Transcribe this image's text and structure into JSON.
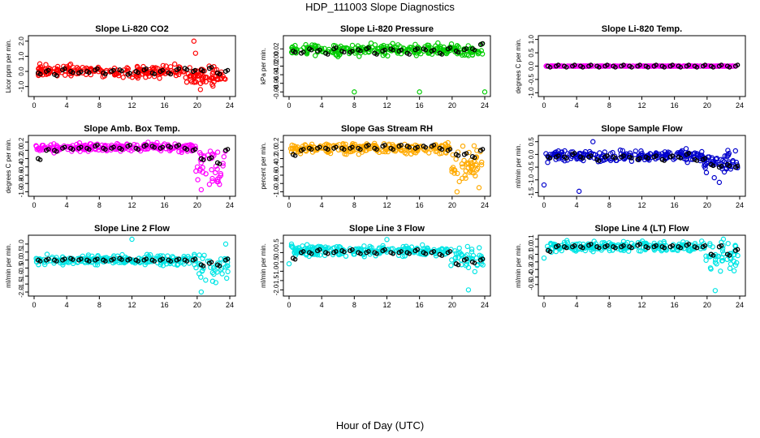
{
  "title": "HDP_111003  Slope Diagnostics",
  "x_axis_title": "Hour of Day (UTC)",
  "chart_data": [
    {
      "type": "scatter",
      "title": "Slope Li-820 CO2",
      "ylabel": "Licor ppm per min.",
      "xlim": [
        0,
        24
      ],
      "xticks": [
        0,
        4,
        8,
        12,
        16,
        20,
        24
      ],
      "ylim": [
        -1.5,
        2.2
      ],
      "yticks": [
        -1,
        0,
        1,
        2
      ],
      "ytick_labels": [
        "-1.0",
        "0.0",
        "1.0",
        "2.0"
      ],
      "color": "#ff0000",
      "series": [
        {
          "name": "means",
          "color": "#000000",
          "x": [
            0.5,
            1.5,
            2.5,
            3.5,
            4.5,
            5.5,
            6.5,
            7.5,
            8.5,
            9.5,
            10.5,
            11.5,
            12.5,
            13.5,
            14.5,
            15.5,
            16.5,
            17.5,
            18.5,
            19.5,
            20.5,
            21.5,
            22.5,
            23.5
          ],
          "y": [
            -0.1,
            0.0,
            -0.2,
            0.1,
            0.0,
            -0.1,
            0.0,
            0.1,
            -0.1,
            0.0,
            0.1,
            -0.2,
            0.0,
            0.1,
            -0.1,
            0.0,
            -0.1,
            0.1,
            0.2,
            0.0,
            0.1,
            0.2,
            -0.1,
            0.0
          ]
        }
      ],
      "scatter": {
        "center": 0.0,
        "spread": 0.35,
        "tail_start": 18.5,
        "tail_spread": 0.5,
        "outliers": [
          [
            0.7,
            0.5
          ],
          [
            19.6,
            2.0
          ],
          [
            20.4,
            -1.2
          ],
          [
            19.8,
            1.2
          ]
        ]
      }
    },
    {
      "type": "scatter",
      "title": "Slope Li-820 Pressure",
      "ylabel": "kPa per min.",
      "xlim": [
        0,
        24
      ],
      "xticks": [
        0,
        4,
        8,
        12,
        16,
        20,
        24
      ],
      "ylim": [
        -0.085,
        0.045
      ],
      "yticks": [
        -0.08,
        -0.06,
        -0.04,
        -0.02,
        0,
        0.02
      ],
      "ytick_labels": [
        "-0.08",
        "-0.06",
        "-0.04",
        "-0.02",
        "0.00",
        "0.02"
      ],
      "color": "#00cc00",
      "series": [
        {
          "name": "means",
          "color": "#000000",
          "x": [
            0.5,
            1.5,
            2.5,
            3.5,
            4.5,
            5.5,
            6.5,
            7.5,
            8.5,
            9.5,
            10.5,
            11.5,
            12.5,
            13.5,
            14.5,
            15.5,
            16.5,
            17.5,
            18.5,
            19.5,
            20.5,
            21.5,
            22.5,
            23.5
          ],
          "y": [
            0.015,
            0.01,
            0.02,
            0.015,
            0.01,
            0.02,
            0.015,
            0.012,
            0.018,
            0.02,
            0.01,
            0.015,
            0.02,
            0.015,
            0.01,
            0.018,
            0.02,
            0.015,
            0.01,
            0.02,
            0.015,
            0.018,
            0.02,
            0.03
          ]
        }
      ],
      "scatter": {
        "center": 0.018,
        "spread": 0.012,
        "tail_start": 25,
        "tail_spread": 0,
        "outliers": [
          [
            8.0,
            -0.08
          ],
          [
            16.0,
            -0.08
          ],
          [
            24.0,
            -0.08
          ]
        ]
      }
    },
    {
      "type": "scatter",
      "title": "Slope Li-820 Temp.",
      "ylabel": "degrees C per min.",
      "xlim": [
        0,
        24
      ],
      "xticks": [
        0,
        4,
        8,
        12,
        16,
        20,
        24
      ],
      "ylim": [
        -1.05,
        1.05
      ],
      "yticks": [
        -1,
        -0.5,
        0,
        0.5,
        1
      ],
      "ytick_labels": [
        "-1.0",
        "-0.5",
        "0.0",
        "0.5",
        "1.0"
      ],
      "color": "#ff00ff",
      "series": [
        {
          "name": "means",
          "color": "#000000",
          "x": [
            0.5,
            1.5,
            2.5,
            3.5,
            4.5,
            5.5,
            6.5,
            7.5,
            8.5,
            9.5,
            10.5,
            11.5,
            12.5,
            13.5,
            14.5,
            15.5,
            16.5,
            17.5,
            18.5,
            19.5,
            20.5,
            21.5,
            22.5,
            23.5
          ],
          "y": [
            0,
            0,
            0,
            0,
            0,
            0,
            0,
            0,
            0,
            0,
            0,
            0,
            0,
            0,
            0,
            0,
            0,
            0,
            0,
            0,
            0,
            0,
            0,
            0
          ]
        }
      ],
      "scatter": {
        "center": 0.0,
        "spread": 0.0,
        "tail_start": 25,
        "tail_spread": 0,
        "outliers": []
      }
    },
    {
      "type": "scatter",
      "title": "Slope Amb. Box Temp.",
      "ylabel": "degrees C per min.",
      "xlim": [
        0,
        24
      ],
      "xticks": [
        0,
        4,
        8,
        12,
        16,
        20,
        24
      ],
      "ylim": [
        -1.05,
        0.3
      ],
      "yticks": [
        -1,
        -0.8,
        -0.6,
        -0.4,
        -0.2,
        0,
        0.2
      ],
      "ytick_labels": [
        "-1.0",
        "-0.8",
        "-0.6",
        "-0.4",
        "-0.2",
        "0.0",
        "0.2"
      ],
      "color": "#ff00ff",
      "series": [
        {
          "name": "means",
          "color": "#000000",
          "x": [
            0.5,
            1.5,
            2.5,
            3.5,
            4.5,
            5.5,
            6.5,
            7.5,
            8.5,
            9.5,
            10.5,
            11.5,
            12.5,
            13.5,
            14.5,
            15.5,
            16.5,
            17.5,
            18.5,
            19.5,
            20.5,
            21.5,
            22.5,
            23.5
          ],
          "y": [
            -0.2,
            0.0,
            0.0,
            0.05,
            0.05,
            0.05,
            0.05,
            0.1,
            0.05,
            0.05,
            0.05,
            0.1,
            0.05,
            0.1,
            0.1,
            0.05,
            0.1,
            0.1,
            0.05,
            0.0,
            -0.2,
            -0.2,
            -0.3,
            0.0
          ]
        }
      ],
      "scatter": {
        "center": 0.06,
        "spread": 0.1,
        "tail_start": 19.8,
        "tail_spread": 0.55,
        "outliers": [
          [
            20.5,
            -0.95
          ],
          [
            22.5,
            -0.7
          ]
        ]
      }
    },
    {
      "type": "scatter",
      "title": "Slope Gas Stream RH",
      "ylabel": "percent per min.",
      "xlim": [
        0,
        24
      ],
      "xticks": [
        0,
        4,
        8,
        12,
        16,
        20,
        24
      ],
      "ylim": [
        -1.05,
        0.3
      ],
      "yticks": [
        -1,
        -0.8,
        -0.6,
        -0.4,
        -0.2,
        0,
        0.2
      ],
      "ytick_labels": [
        "-1.0",
        "-0.8",
        "-0.6",
        "-0.4",
        "-0.2",
        "0.0",
        "0.2"
      ],
      "color": "#ffaa00",
      "series": [
        {
          "name": "means",
          "color": "#000000",
          "x": [
            0.5,
            1.5,
            2.5,
            3.5,
            4.5,
            5.5,
            6.5,
            7.5,
            8.5,
            9.5,
            10.5,
            11.5,
            12.5,
            13.5,
            14.5,
            15.5,
            16.5,
            17.5,
            18.5,
            19.5,
            20.5,
            21.5,
            22.5,
            23.5
          ],
          "y": [
            -0.1,
            0.0,
            0.05,
            0.05,
            0.05,
            0.05,
            0.05,
            0.05,
            0.05,
            0.1,
            0.05,
            0.1,
            0.05,
            0.1,
            0.1,
            0.05,
            0.1,
            0.1,
            0.05,
            0.0,
            -0.1,
            -0.1,
            -0.15,
            0.0
          ]
        }
      ],
      "scatter": {
        "center": 0.05,
        "spread": 0.12,
        "tail_start": 19.8,
        "tail_spread": 0.5,
        "outliers": [
          [
            20.6,
            -1.0
          ],
          [
            23.3,
            -0.9
          ]
        ]
      }
    },
    {
      "type": "scatter",
      "title": "Slope Sample Flow",
      "ylabel": "ml/min per min.",
      "xlim": [
        0,
        24
      ],
      "xticks": [
        0,
        4,
        8,
        12,
        16,
        20,
        24
      ],
      "ylim": [
        -1.55,
        0.65
      ],
      "yticks": [
        -1.5,
        -1,
        -0.5,
        0,
        0.5
      ],
      "ytick_labels": [
        "-1.5",
        "-1.0",
        "-0.5",
        "0.0",
        "0.5"
      ],
      "color": "#0000cc",
      "series": [
        {
          "name": "means",
          "color": "#000000",
          "x": [
            0.5,
            1.5,
            2.5,
            3.5,
            4.5,
            5.5,
            6.5,
            7.5,
            8.5,
            9.5,
            10.5,
            11.5,
            12.5,
            13.5,
            14.5,
            15.5,
            16.5,
            17.5,
            18.5,
            19.5,
            20.5,
            21.5,
            22.5,
            23.5
          ],
          "y": [
            -0.1,
            -0.1,
            -0.1,
            0.0,
            -0.1,
            -0.1,
            -0.2,
            -0.1,
            -0.1,
            -0.1,
            -0.1,
            -0.2,
            -0.1,
            -0.1,
            -0.2,
            -0.1,
            -0.1,
            0.0,
            -0.2,
            -0.2,
            -0.4,
            -0.5,
            -0.4,
            -0.5
          ]
        }
      ],
      "scatter": {
        "center": -0.05,
        "spread": 0.22,
        "tail_start": 19.5,
        "tail_spread": 0.45,
        "outliers": [
          [
            4.3,
            -1.45
          ],
          [
            0.0,
            -1.2
          ],
          [
            6.0,
            0.5
          ],
          [
            21.5,
            -1.1
          ]
        ]
      }
    },
    {
      "type": "scatter",
      "title": "Slope Line 2 Flow",
      "ylabel": "ml/min per min.",
      "xlim": [
        0,
        24
      ],
      "xticks": [
        0,
        4,
        8,
        12,
        16,
        20,
        24
      ],
      "ylim": [
        -2.1,
        1.4
      ],
      "yticks": [
        -2,
        -1.5,
        -1,
        -0.5,
        0,
        0.5,
        1
      ],
      "ytick_labels": [
        "-2.0",
        "-1.5",
        "-1.0",
        "-0.5",
        "0.0",
        "0.5",
        "1.0"
      ],
      "color": "#00e5e5",
      "series": [
        {
          "name": "means",
          "color": "#000000",
          "x": [
            0.5,
            1.5,
            2.5,
            3.5,
            4.5,
            5.5,
            6.5,
            7.5,
            8.5,
            9.5,
            10.5,
            11.5,
            12.5,
            13.5,
            14.5,
            15.5,
            16.5,
            17.5,
            18.5,
            19.5,
            20.5,
            21.5,
            22.5,
            23.5
          ],
          "y": [
            0.0,
            0.0,
            0.0,
            0.0,
            0.1,
            0.0,
            0.0,
            0.0,
            0.0,
            0.0,
            0.1,
            0.0,
            0.0,
            0.0,
            0.0,
            0.0,
            0.0,
            0.0,
            0.0,
            0.0,
            -0.3,
            -0.2,
            -0.3,
            0.0
          ]
        }
      ],
      "scatter": {
        "center": 0.0,
        "spread": 0.3,
        "tail_start": 19.8,
        "tail_spread": 0.8,
        "outliers": [
          [
            12.0,
            1.3
          ],
          [
            20.5,
            -2.0
          ],
          [
            23.5,
            1.0
          ]
        ]
      }
    },
    {
      "type": "scatter",
      "title": "Slope Line 3 Flow",
      "ylabel": "ml/min per min.",
      "xlim": [
        0,
        24
      ],
      "xticks": [
        0,
        4,
        8,
        12,
        16,
        20,
        24
      ],
      "ylim": [
        -2.2,
        0.8
      ],
      "yticks": [
        -2,
        -1.5,
        -1,
        -0.5,
        0,
        0.5
      ],
      "ytick_labels": [
        "-2.0",
        "-1.5",
        "-1.0",
        "-0.5",
        "0.0",
        "0.5"
      ],
      "color": "#00e5e5",
      "series": [
        {
          "name": "means",
          "color": "#000000",
          "x": [
            0.5,
            1.5,
            2.5,
            3.5,
            4.5,
            5.5,
            6.5,
            7.5,
            8.5,
            9.5,
            10.5,
            11.5,
            12.5,
            13.5,
            14.5,
            15.5,
            16.5,
            17.5,
            18.5,
            19.5,
            20.5,
            21.5,
            22.5,
            23.5
          ],
          "y": [
            -0.3,
            0.0,
            0.0,
            0.1,
            0.0,
            0.0,
            0.1,
            0.1,
            0.0,
            0.0,
            0.0,
            0.1,
            0.0,
            0.0,
            0.0,
            0.1,
            0.0,
            0.0,
            -0.1,
            0.0,
            -0.6,
            -0.4,
            -0.5,
            -0.4
          ]
        }
      ],
      "scatter": {
        "center": 0.1,
        "spread": 0.3,
        "tail_start": 19.8,
        "tail_spread": 0.7,
        "outliers": [
          [
            22.0,
            -2.0
          ],
          [
            0.0,
            -0.6
          ],
          [
            12.0,
            0.7
          ]
        ]
      }
    },
    {
      "type": "scatter",
      "title": "Slope Line 4 (LT) Flow",
      "ylabel": "ml/min per min.",
      "xlim": [
        0,
        24
      ],
      "xticks": [
        0,
        4,
        8,
        12,
        16,
        20,
        24
      ],
      "ylim": [
        -0.62,
        0.12
      ],
      "yticks": [
        -0.5,
        -0.4,
        -0.3,
        -0.2,
        -0.1,
        0,
        0.1
      ],
      "ytick_labels": [
        "-0.5",
        "-0.4",
        "-0.3",
        "-0.2",
        "-0.1",
        "0.0",
        "0.1"
      ],
      "color": "#00e5e5",
      "series": [
        {
          "name": "means",
          "color": "#000000",
          "x": [
            0.5,
            1.5,
            2.5,
            3.5,
            4.5,
            5.5,
            6.5,
            7.5,
            8.5,
            9.5,
            10.5,
            11.5,
            12.5,
            13.5,
            14.5,
            15.5,
            16.5,
            17.5,
            18.5,
            19.5,
            20.5,
            21.5,
            22.5,
            23.5
          ],
          "y": [
            -0.05,
            0.0,
            0.0,
            0.0,
            0.0,
            0.02,
            0.0,
            0.0,
            0.0,
            0.0,
            0.0,
            0.02,
            0.0,
            0.0,
            0.0,
            0.0,
            0.0,
            0.02,
            0.0,
            0.0,
            -0.1,
            0.0,
            -0.1,
            -0.05
          ]
        }
      ],
      "scatter": {
        "center": 0.0,
        "spread": 0.06,
        "tail_start": 19.8,
        "tail_spread": 0.2,
        "outliers": [
          [
            21.0,
            -0.58
          ],
          [
            22.0,
            0.1
          ],
          [
            0.0,
            -0.15
          ]
        ]
      }
    }
  ]
}
